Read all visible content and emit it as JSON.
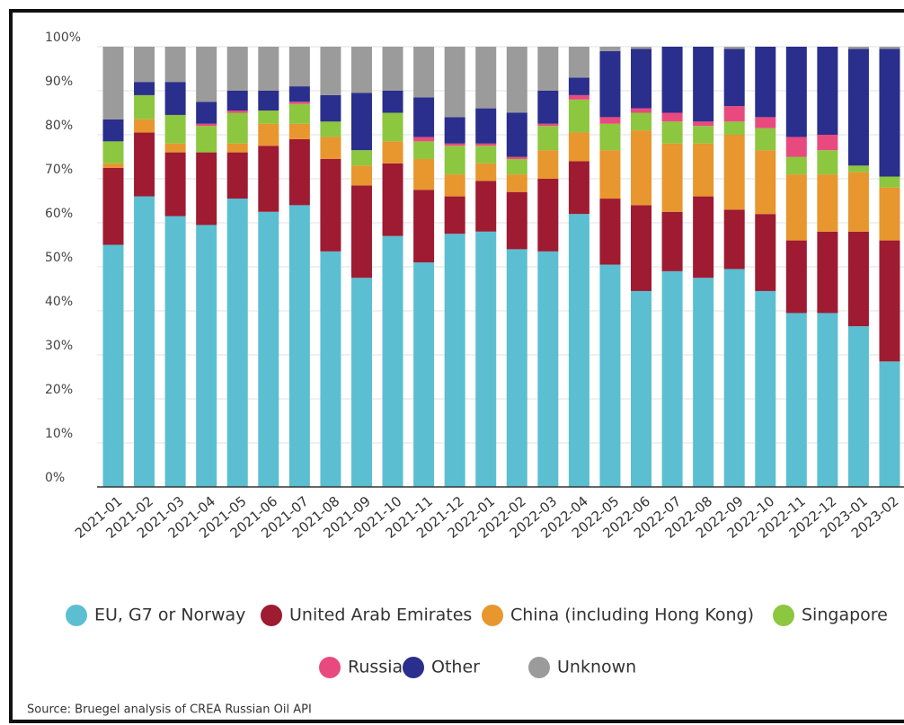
{
  "chart_data": {
    "type": "stacked_bar",
    "categories": [
      "2021-01",
      "2021-02",
      "2021-03",
      "2021-04",
      "2021-05",
      "2021-06",
      "2021-07",
      "2021-08",
      "2021-09",
      "2021-10",
      "2021-11",
      "2021-12",
      "2022-01",
      "2022-02",
      "2022-03",
      "2022-04",
      "2022-05",
      "2022-06",
      "2022-07",
      "2022-08",
      "2022-09",
      "2022-10",
      "2022-11",
      "2022-12",
      "2023-01",
      "2023-02"
    ],
    "series": [
      {
        "name": "EU, G7 or Norway",
        "color": "#5bbfd1",
        "values": [
          55,
          66,
          61.5,
          59.5,
          65.5,
          62.5,
          64,
          53.5,
          47.5,
          57,
          51,
          57.5,
          58,
          54,
          53.5,
          62,
          50.5,
          44.5,
          49,
          47.5,
          49.5,
          44.5,
          39.5,
          39.5,
          36.5,
          28.5
        ]
      },
      {
        "name": "United Arab Emirates",
        "color": "#9e1b32",
        "values": [
          17.5,
          14.5,
          14.5,
          16.5,
          10.5,
          15,
          15,
          21,
          21,
          16.5,
          16.5,
          8.5,
          11.5,
          13,
          16.5,
          12,
          15,
          19.5,
          13.5,
          18.5,
          13.5,
          17.5,
          16.5,
          18.5,
          21.5,
          27.5
        ]
      },
      {
        "name": "China (including Hong Kong)",
        "color": "#e8962e",
        "values": [
          1,
          3,
          2,
          0,
          2,
          5,
          3.5,
          5,
          4.5,
          5,
          7,
          5,
          4,
          4,
          6.5,
          6.5,
          11,
          17,
          15.5,
          12,
          17,
          14.5,
          15,
          13,
          13.5,
          12
        ]
      },
      {
        "name": "Singapore",
        "color": "#8dc63f",
        "values": [
          5,
          5.5,
          6.5,
          6,
          7,
          3,
          4.5,
          3.5,
          3.5,
          6.5,
          4,
          6.5,
          4,
          3.5,
          5.5,
          7.5,
          6,
          4,
          5,
          4,
          3,
          5,
          4,
          5.5,
          1.5,
          2.5
        ]
      },
      {
        "name": "Russia",
        "color": "#e84a7f",
        "values": [
          0,
          0,
          0,
          0.5,
          0.5,
          0,
          0.5,
          0,
          0,
          0,
          1,
          0.5,
          0.5,
          0.5,
          0.5,
          1,
          1.5,
          1,
          2,
          1,
          3.5,
          2.5,
          4.5,
          3.5,
          0,
          0
        ]
      },
      {
        "name": "Other",
        "color": "#2a2e8c",
        "values": [
          5,
          3,
          7.5,
          5,
          4.5,
          4.5,
          3.5,
          6,
          13,
          5,
          9,
          6,
          8,
          10,
          7.5,
          4,
          15,
          13.5,
          15,
          17,
          13,
          16,
          20.5,
          20,
          26.5,
          29
        ]
      },
      {
        "name": "Unknown",
        "color": "#9b9b9b",
        "values": [
          16.5,
          8,
          8,
          12.5,
          10,
          10,
          9,
          11,
          10.5,
          10,
          11.5,
          16,
          14,
          15,
          10,
          7,
          1,
          0.5,
          0,
          0,
          0.5,
          0,
          0,
          0,
          0.5,
          0.5
        ]
      }
    ],
    "ylim": [
      0,
      100
    ],
    "yticks": [
      {
        "value": 0,
        "label": "0%"
      },
      {
        "value": 10,
        "label": "10%"
      },
      {
        "value": 20,
        "label": "20%"
      },
      {
        "value": 30,
        "label": "30%"
      },
      {
        "value": 40,
        "label": "40%"
      },
      {
        "value": 50,
        "label": "50%"
      },
      {
        "value": 60,
        "label": "60%"
      },
      {
        "value": 70,
        "label": "70%"
      },
      {
        "value": 80,
        "label": "80%"
      },
      {
        "value": 90,
        "label": "90%"
      },
      {
        "value": 100,
        "label": "100%"
      }
    ],
    "grid": true,
    "source": "Source: Bruegel analysis of CREA Russian Oil API"
  }
}
